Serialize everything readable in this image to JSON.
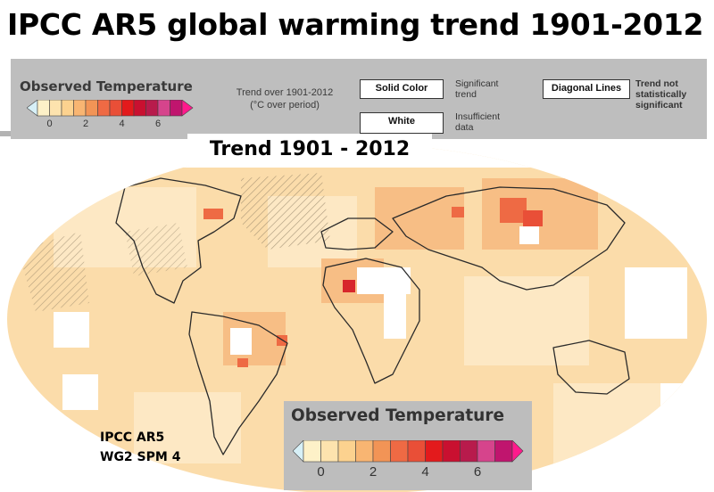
{
  "title": "IPCC AR5 global warming trend 1901-2012",
  "legend": {
    "title": "Observed Temperature",
    "note_line1": "Trend over 1901-2012",
    "note_line2": "(°C over period)",
    "ticks": [
      "0",
      "2",
      "4",
      "6"
    ],
    "colors": [
      "#d7f0f7",
      "#fdf1c8",
      "#fde3ae",
      "#fcd28f",
      "#f8b572",
      "#f29456",
      "#ef6a44",
      "#e94f37",
      "#e31a1c",
      "#c91030",
      "#b81b4c",
      "#d6448c",
      "#c0156e",
      "#ff1a8c"
    ]
  },
  "key": {
    "solid_label": "Solid Color",
    "solid_desc_1": "Significant",
    "solid_desc_2": "trend",
    "white_label": "White",
    "white_desc_1": "Insufficient",
    "white_desc_2": "data",
    "diag_label": "Diagonal Lines",
    "diag_desc_1": "Trend not",
    "diag_desc_2": "statistically",
    "diag_desc_3": "significant"
  },
  "panel_title": "Trend 1901 - 2012",
  "bottom_legend": {
    "title": "Observed Temperature",
    "ticks": [
      "0",
      "2",
      "4",
      "6"
    ]
  },
  "credit_line1": "IPCC AR5",
  "credit_line2": "WG2 SPM 4"
}
